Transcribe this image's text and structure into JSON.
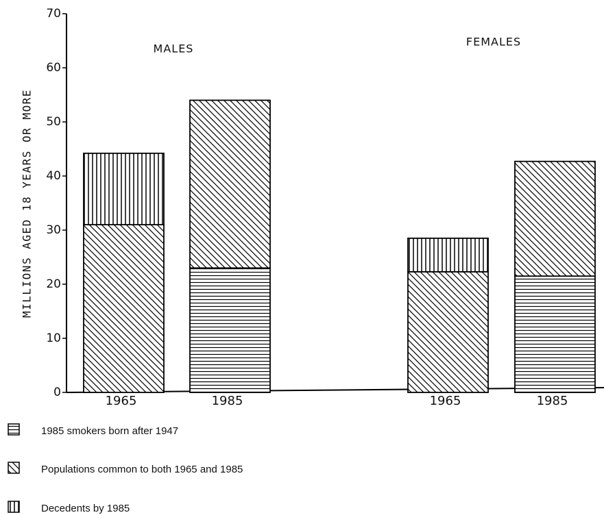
{
  "chart_data": {
    "type": "stacked_bar",
    "ylabel": "MILLIONS AGED 18 YEARS OR MORE",
    "group_labels": [
      "MALES",
      "FEMALES"
    ],
    "categories": [
      "1965",
      "1985",
      "1965",
      "1985"
    ],
    "series": [
      {
        "name": "1985 smokers born after 1947",
        "color": "#000000",
        "pattern": "horizontal",
        "values": [
          null,
          23,
          null,
          21.5
        ]
      },
      {
        "name": "Populations common to both 1965 and 1985",
        "color": "#000000",
        "pattern": "diagonal",
        "values": [
          31,
          31,
          22.3,
          21.2
        ]
      },
      {
        "name": "Decedents by 1985",
        "color": "#000000",
        "pattern": "vertical",
        "values": [
          13.2,
          null,
          6.2,
          null
        ]
      }
    ],
    "ylim": [
      0,
      70
    ],
    "yticks": [
      0,
      10,
      20,
      30,
      40,
      50,
      60,
      70
    ],
    "grid": false
  }
}
